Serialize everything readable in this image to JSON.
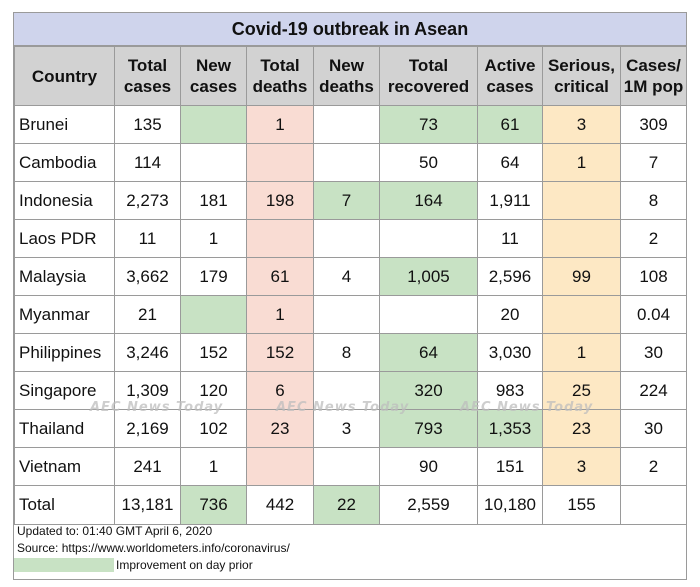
{
  "title": "Covid-19 outbreak in Asean",
  "headers": {
    "country": "Country",
    "total_cases": "Total cases",
    "new_cases": "New cases",
    "total_deaths": "Total deaths",
    "new_deaths": "New deaths",
    "total_recovered": "Total recovered",
    "active_cases": "Active cases",
    "serious_critical": "Serious, critical",
    "cases_per_1m": "Cases/ 1M pop"
  },
  "rows": [
    {
      "country": "Brunei",
      "total_cases": "135",
      "new_cases": "",
      "total_deaths": "1",
      "new_deaths": "",
      "total_recovered": "73",
      "active_cases": "61",
      "serious_critical": "3",
      "cases_per_1m": "309"
    },
    {
      "country": "Cambodia",
      "total_cases": "114",
      "new_cases": "",
      "total_deaths": "",
      "new_deaths": "",
      "total_recovered": "50",
      "active_cases": "64",
      "serious_critical": "1",
      "cases_per_1m": "7"
    },
    {
      "country": "Indonesia",
      "total_cases": "2,273",
      "new_cases": "181",
      "total_deaths": "198",
      "new_deaths": "7",
      "total_recovered": "164",
      "active_cases": "1,911",
      "serious_critical": "",
      "cases_per_1m": "8"
    },
    {
      "country": "Laos PDR",
      "total_cases": "11",
      "new_cases": "1",
      "total_deaths": "",
      "new_deaths": "",
      "total_recovered": "",
      "active_cases": "11",
      "serious_critical": "",
      "cases_per_1m": "2"
    },
    {
      "country": "Malaysia",
      "total_cases": "3,662",
      "new_cases": "179",
      "total_deaths": "61",
      "new_deaths": "4",
      "total_recovered": "1,005",
      "active_cases": "2,596",
      "serious_critical": "99",
      "cases_per_1m": "108"
    },
    {
      "country": "Myanmar",
      "total_cases": "21",
      "new_cases": "",
      "total_deaths": "1",
      "new_deaths": "",
      "total_recovered": "",
      "active_cases": "20",
      "serious_critical": "",
      "cases_per_1m": "0.04"
    },
    {
      "country": "Philippines",
      "total_cases": "3,246",
      "new_cases": "152",
      "total_deaths": "152",
      "new_deaths": "8",
      "total_recovered": "64",
      "active_cases": "3,030",
      "serious_critical": "1",
      "cases_per_1m": "30"
    },
    {
      "country": "Singapore",
      "total_cases": "1,309",
      "new_cases": "120",
      "total_deaths": "6",
      "new_deaths": "",
      "total_recovered": "320",
      "active_cases": "983",
      "serious_critical": "25",
      "cases_per_1m": "224"
    },
    {
      "country": "Thailand",
      "total_cases": "2,169",
      "new_cases": "102",
      "total_deaths": "23",
      "new_deaths": "3",
      "total_recovered": "793",
      "active_cases": "1,353",
      "serious_critical": "23",
      "cases_per_1m": "30"
    },
    {
      "country": "Vietnam",
      "total_cases": "241",
      "new_cases": "1",
      "total_deaths": "",
      "new_deaths": "",
      "total_recovered": "90",
      "active_cases": "151",
      "serious_critical": "3",
      "cases_per_1m": "2"
    }
  ],
  "total": {
    "country": "Total",
    "total_cases": "13,181",
    "new_cases": "736",
    "total_deaths": "442",
    "new_deaths": "22",
    "total_recovered": "2,559",
    "active_cases": "10,180",
    "serious_critical": "155",
    "cases_per_1m": ""
  },
  "footer": {
    "updated": "Updated to: 01:40 GMT April 6, 2020",
    "source": "Source: https://www.worldometers.info/coronavirus/",
    "legend_label": "Improvement on day prior"
  },
  "watermark": "AEC News Today",
  "colors": {
    "title_bg": "#cfd4ec",
    "header_bg": "#d2d2d2",
    "improvement_green": "#c8e2c4",
    "deaths_pink": "#f9dcd3",
    "serious_yellow": "#fde8c4"
  }
}
